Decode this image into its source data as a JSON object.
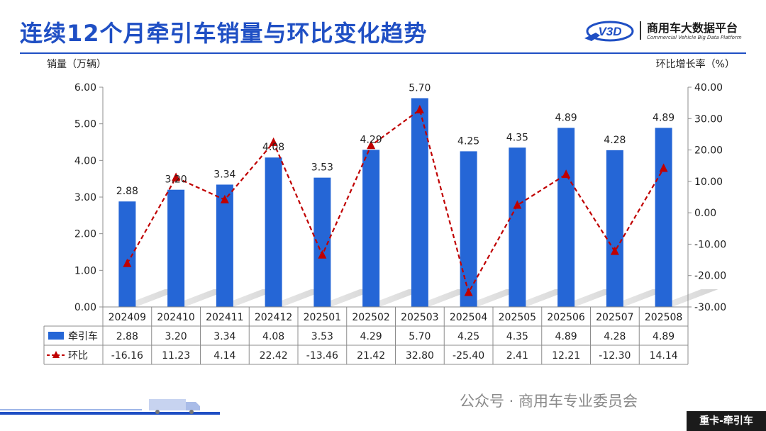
{
  "header": {
    "title": "连续12个月牵引车销量与环比变化趋势",
    "logo_text": "V3D",
    "logo_name": "商用车大数据平台",
    "logo_subtitle": "Commercial Vehicle Big Data Platform"
  },
  "colors": {
    "accent": "#1f4fc4",
    "bar": "#2566d6",
    "line": "#c00000"
  },
  "chart_data": {
    "type": "bar+line",
    "left_axis_title": "销量（万辆）",
    "right_axis_title": "环比增长率（%）",
    "left_ylim": [
      0,
      6
    ],
    "left_ticks": [
      "0.00",
      "1.00",
      "2.00",
      "3.00",
      "4.00",
      "5.00",
      "6.00"
    ],
    "right_ylim": [
      -30,
      40
    ],
    "right_ticks": [
      "-30.00",
      "-20.00",
      "-10.00",
      "0.00",
      "10.00",
      "20.00",
      "30.00",
      "40.00"
    ],
    "categories": [
      "202409",
      "202410",
      "202411",
      "202412",
      "202501",
      "202502",
      "202503",
      "202504",
      "202505",
      "202506",
      "202507",
      "202508"
    ],
    "series": [
      {
        "name": "牵引车",
        "type": "bar",
        "axis": "left",
        "values": [
          2.88,
          3.2,
          3.34,
          4.08,
          3.53,
          4.29,
          5.7,
          4.25,
          4.35,
          4.89,
          4.28,
          4.89
        ],
        "labels": [
          "2.88",
          "3.20",
          "3.34",
          "4.08",
          "3.53",
          "4.29",
          "5.70",
          "4.25",
          "4.35",
          "4.89",
          "4.28",
          "4.89"
        ]
      },
      {
        "name": "环比",
        "type": "line",
        "axis": "right",
        "style": "dashed",
        "marker": "triangle",
        "values": [
          -16.16,
          11.23,
          4.14,
          22.42,
          -13.46,
          21.42,
          32.8,
          -25.4,
          2.41,
          12.21,
          -12.3,
          14.14
        ],
        "labels": [
          "-16.16",
          "11.23",
          "4.14",
          "22.42",
          "-13.46",
          "21.42",
          "32.80",
          "-25.40",
          "2.41",
          "12.21",
          "-12.30",
          "14.14"
        ]
      }
    ],
    "grid": false,
    "legend": "data-table"
  },
  "footer": {
    "wechat_text": "公众号 · 商用车专业委员会",
    "tag": "重卡-牵引车"
  }
}
